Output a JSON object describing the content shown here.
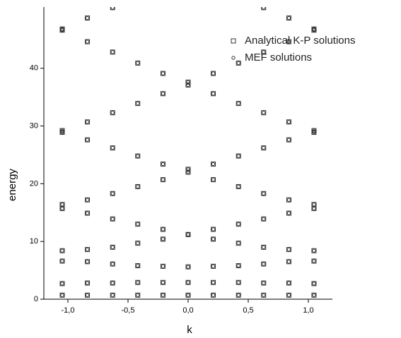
{
  "chart_data": {
    "type": "scatter",
    "xlabel": "k",
    "ylabel": "energy",
    "xlim": [
      -1.2,
      1.2
    ],
    "ylim": [
      0,
      50.6
    ],
    "xticks": [
      {
        "value": -1,
        "label": "-1,0"
      },
      {
        "value": -0.5,
        "label": "-0,5"
      },
      {
        "value": 0,
        "label": "0,0"
      },
      {
        "value": 0.5,
        "label": "0,5"
      },
      {
        "value": 1,
        "label": "1,0"
      }
    ],
    "yticks": [
      0,
      10,
      20,
      30,
      40
    ],
    "legend": "top-right",
    "series": [
      {
        "name": "Analytical K-P solutions",
        "marker": "square",
        "color": "#333333",
        "x": [
          -1.047,
          -0.838,
          -0.628,
          -0.419,
          -0.209,
          0,
          0.209,
          0.419,
          0.628,
          0.838,
          1.047,
          -1.047,
          -0.838,
          -0.628,
          -0.419,
          -0.209,
          0,
          0.209,
          0.419,
          0.628,
          0.838,
          1.047,
          -1.047,
          -0.838,
          -0.628,
          -0.419,
          -0.209,
          0,
          0.209,
          0.419,
          0.628,
          0.838,
          1.047,
          -1.047,
          -0.838,
          -0.628,
          -0.419,
          -0.209,
          0,
          0.209,
          0.419,
          0.628,
          0.838,
          1.047,
          -1.047,
          -0.838,
          -0.628,
          -0.419,
          -0.209,
          0,
          0.209,
          0.419,
          0.628,
          0.838,
          1.047,
          -1.047,
          -0.838,
          -0.628,
          -0.419,
          -0.209,
          0,
          0.209,
          0.419,
          0.628,
          0.838,
          1.047,
          -1.047,
          -0.838,
          -0.628,
          -0.419,
          -0.209,
          0,
          0.209,
          0.419,
          0.628,
          0.838,
          1.047,
          -1.047,
          -0.838,
          -0.628,
          -0.419,
          -0.209,
          0,
          0.209,
          0.419,
          0.628,
          0.838,
          1.047,
          -1.047,
          -0.838,
          -0.628,
          -0.419,
          -0.209,
          0,
          0.209,
          0.419,
          0.628,
          0.838,
          1.047,
          -1.047,
          -0.838,
          -0.628,
          0.628,
          0.838,
          1.047
        ],
        "y": [
          0.7,
          0.7,
          0.7,
          0.7,
          0.7,
          0.7,
          0.7,
          0.7,
          0.7,
          0.7,
          0.7,
          2.7,
          2.8,
          2.8,
          2.9,
          2.9,
          2.9,
          2.9,
          2.9,
          2.8,
          2.8,
          2.7,
          6.6,
          6.5,
          6.1,
          5.8,
          5.7,
          5.6,
          5.7,
          5.8,
          6.1,
          6.5,
          6.6,
          8.4,
          8.6,
          9.0,
          9.7,
          10.4,
          11.2,
          10.4,
          9.7,
          9.0,
          8.6,
          8.4,
          15.7,
          14.9,
          13.9,
          13.0,
          12.1,
          11.2,
          12.1,
          13.0,
          13.9,
          14.9,
          15.7,
          16.4,
          17.2,
          18.3,
          19.5,
          20.7,
          22.0,
          20.7,
          19.5,
          18.3,
          17.2,
          16.4,
          28.9,
          27.6,
          26.2,
          24.8,
          23.4,
          22.5,
          23.4,
          24.8,
          26.2,
          27.6,
          28.9,
          29.2,
          30.7,
          32.3,
          33.9,
          35.6,
          37.1,
          35.6,
          33.9,
          32.3,
          30.7,
          29.2,
          46.6,
          44.6,
          42.8,
          40.9,
          39.1,
          37.6,
          39.1,
          40.9,
          42.8,
          44.6,
          46.6,
          46.8,
          48.7,
          50.5,
          50.5,
          48.7,
          46.8
        ]
      },
      {
        "name": "MEF solutions",
        "marker": "circle",
        "color": "#333333",
        "x": [
          -1.047,
          -0.838,
          -0.628,
          -0.419,
          -0.209,
          0,
          0.209,
          0.419,
          0.628,
          0.838,
          1.047,
          -1.047,
          -0.838,
          -0.628,
          -0.419,
          -0.209,
          0,
          0.209,
          0.419,
          0.628,
          0.838,
          1.047,
          -1.047,
          -0.838,
          -0.628,
          -0.419,
          -0.209,
          0,
          0.209,
          0.419,
          0.628,
          0.838,
          1.047,
          -1.047,
          -0.838,
          -0.628,
          -0.419,
          -0.209,
          0,
          0.209,
          0.419,
          0.628,
          0.838,
          1.047,
          -1.047,
          -0.838,
          -0.628,
          -0.419,
          -0.209,
          0,
          0.209,
          0.419,
          0.628,
          0.838,
          1.047,
          -1.047,
          -0.838,
          -0.628,
          -0.419,
          -0.209,
          0,
          0.209,
          0.419,
          0.628,
          0.838,
          1.047,
          -1.047,
          -0.838,
          -0.628,
          -0.419,
          -0.209,
          0,
          0.209,
          0.419,
          0.628,
          0.838,
          1.047,
          -1.047,
          -0.838,
          -0.628,
          -0.419,
          -0.209,
          0,
          0.209,
          0.419,
          0.628,
          0.838,
          1.047,
          -1.047,
          -0.838,
          -0.628,
          -0.419,
          -0.209,
          0,
          0.209,
          0.419,
          0.628,
          0.838,
          1.047,
          -1.047,
          -0.838,
          -0.628,
          0.628,
          0.838,
          1.047
        ],
        "y": [
          0.7,
          0.7,
          0.7,
          0.7,
          0.7,
          0.7,
          0.7,
          0.7,
          0.7,
          0.7,
          0.7,
          2.7,
          2.8,
          2.8,
          2.9,
          2.9,
          2.9,
          2.9,
          2.9,
          2.8,
          2.8,
          2.7,
          6.6,
          6.5,
          6.1,
          5.8,
          5.7,
          5.6,
          5.7,
          5.8,
          6.1,
          6.5,
          6.6,
          8.4,
          8.6,
          9.0,
          9.7,
          10.4,
          11.2,
          10.4,
          9.7,
          9.0,
          8.6,
          8.4,
          15.7,
          14.9,
          13.9,
          13.0,
          12.1,
          11.2,
          12.1,
          13.0,
          13.9,
          14.9,
          15.7,
          16.4,
          17.2,
          18.3,
          19.5,
          20.7,
          22.0,
          20.7,
          19.5,
          18.3,
          17.2,
          16.4,
          28.9,
          27.6,
          26.2,
          24.8,
          23.4,
          22.5,
          23.4,
          24.8,
          26.2,
          27.6,
          28.9,
          29.2,
          30.7,
          32.3,
          33.9,
          35.6,
          37.1,
          35.6,
          33.9,
          32.3,
          30.7,
          29.2,
          46.6,
          44.6,
          42.8,
          40.9,
          39.1,
          37.6,
          39.1,
          40.9,
          42.8,
          44.6,
          46.6,
          46.8,
          48.7,
          50.5,
          50.5,
          48.7,
          46.8
        ]
      }
    ]
  }
}
